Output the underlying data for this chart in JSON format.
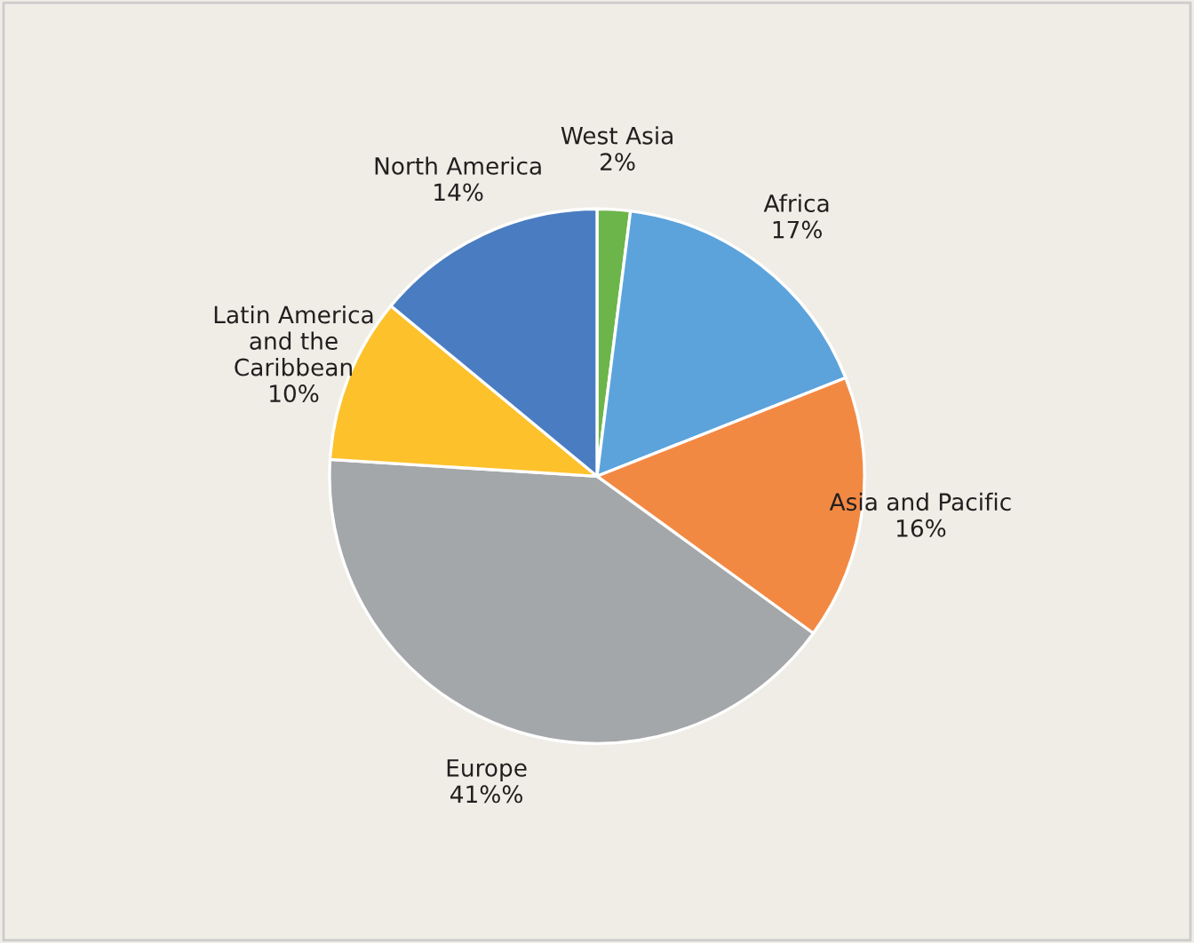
{
  "chart_data": {
    "type": "pie",
    "categories": [
      "West Asia",
      "Africa",
      "Asia and Pacific",
      "Europe",
      "Latin America\nand the\nCaribbean",
      "North America"
    ],
    "values": [
      2,
      17,
      16,
      41,
      10,
      14
    ],
    "value_labels": [
      "2%",
      "17%",
      "16%",
      "41%%",
      "10%",
      "14%"
    ],
    "colors": [
      "#6cb54a",
      "#5ca3dc",
      "#f28943",
      "#a4a7a9",
      "#fdc12b",
      "#4a7cc1"
    ]
  }
}
